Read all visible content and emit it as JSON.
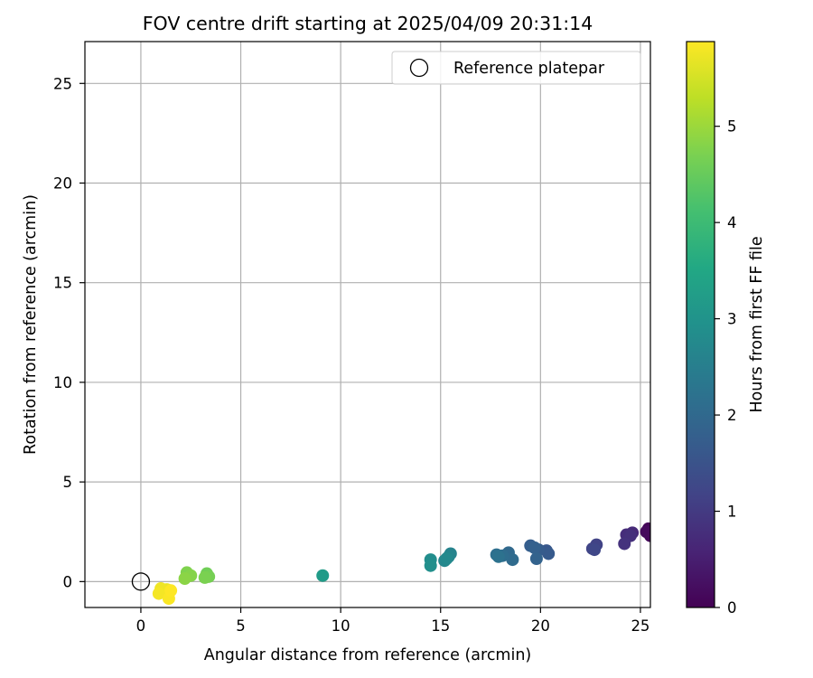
{
  "chart_data": {
    "type": "scatter",
    "title": "FOV centre drift starting at 2025/04/09 20:31:14",
    "xlabel": "Angular distance from reference (arcmin)",
    "ylabel": "Rotation from reference (arcmin)",
    "xlim": [
      -2.8,
      25.5
    ],
    "ylim": [
      -1.3,
      27.1
    ],
    "xticks": [
      0,
      5,
      10,
      15,
      20,
      25
    ],
    "yticks": [
      0,
      5,
      10,
      15,
      20,
      25
    ],
    "grid": true,
    "legend": {
      "placement": "top-right",
      "entries": [
        "Reference platepar"
      ]
    },
    "reference_point": {
      "x": 0,
      "y": 0
    },
    "colorbar": {
      "label": "Hours from first FF file",
      "range": [
        0,
        5.88
      ],
      "ticks": [
        0,
        1,
        2,
        3,
        4,
        5
      ],
      "colormap": "viridis"
    },
    "points": [
      {
        "x": 25.4,
        "y": 2.65,
        "h": 0.05
      },
      {
        "x": 25.5,
        "y": 2.3,
        "h": 0.1
      },
      {
        "x": 25.3,
        "y": 2.5,
        "h": 0.15
      },
      {
        "x": 24.6,
        "y": 2.45,
        "h": 0.7
      },
      {
        "x": 24.3,
        "y": 2.35,
        "h": 0.75
      },
      {
        "x": 24.5,
        "y": 2.3,
        "h": 0.8
      },
      {
        "x": 24.2,
        "y": 1.9,
        "h": 0.85
      },
      {
        "x": 22.8,
        "y": 1.85,
        "h": 1.15
      },
      {
        "x": 22.6,
        "y": 1.65,
        "h": 1.2
      },
      {
        "x": 22.7,
        "y": 1.6,
        "h": 1.25
      },
      {
        "x": 20.3,
        "y": 1.55,
        "h": 1.6
      },
      {
        "x": 20.4,
        "y": 1.4,
        "h": 1.65
      },
      {
        "x": 19.9,
        "y": 1.6,
        "h": 1.7
      },
      {
        "x": 19.5,
        "y": 1.8,
        "h": 1.75
      },
      {
        "x": 19.7,
        "y": 1.7,
        "h": 1.8
      },
      {
        "x": 19.8,
        "y": 1.15,
        "h": 1.85
      },
      {
        "x": 18.4,
        "y": 1.45,
        "h": 2.0
      },
      {
        "x": 18.6,
        "y": 1.1,
        "h": 2.05
      },
      {
        "x": 18.1,
        "y": 1.3,
        "h": 2.1
      },
      {
        "x": 17.8,
        "y": 1.35,
        "h": 2.15
      },
      {
        "x": 17.9,
        "y": 1.25,
        "h": 2.2
      },
      {
        "x": 15.5,
        "y": 1.4,
        "h": 2.6
      },
      {
        "x": 15.4,
        "y": 1.25,
        "h": 2.65
      },
      {
        "x": 15.2,
        "y": 1.05,
        "h": 2.7
      },
      {
        "x": 15.3,
        "y": 1.15,
        "h": 2.75
      },
      {
        "x": 14.5,
        "y": 1.1,
        "h": 2.85
      },
      {
        "x": 14.5,
        "y": 0.8,
        "h": 2.9
      },
      {
        "x": 9.1,
        "y": 0.3,
        "h": 3.2
      },
      {
        "x": 3.3,
        "y": 0.4,
        "h": 4.6
      },
      {
        "x": 3.4,
        "y": 0.25,
        "h": 4.65
      },
      {
        "x": 3.2,
        "y": 0.2,
        "h": 4.7
      },
      {
        "x": 2.3,
        "y": 0.45,
        "h": 4.75
      },
      {
        "x": 2.5,
        "y": 0.3,
        "h": 4.8
      },
      {
        "x": 2.2,
        "y": 0.15,
        "h": 4.85
      },
      {
        "x": 1.3,
        "y": -0.4,
        "h": 5.7
      },
      {
        "x": 1.0,
        "y": -0.35,
        "h": 5.75
      },
      {
        "x": 0.9,
        "y": -0.6,
        "h": 5.8
      },
      {
        "x": 1.4,
        "y": -0.85,
        "h": 5.85
      },
      {
        "x": 1.5,
        "y": -0.45,
        "h": 5.88
      }
    ]
  }
}
